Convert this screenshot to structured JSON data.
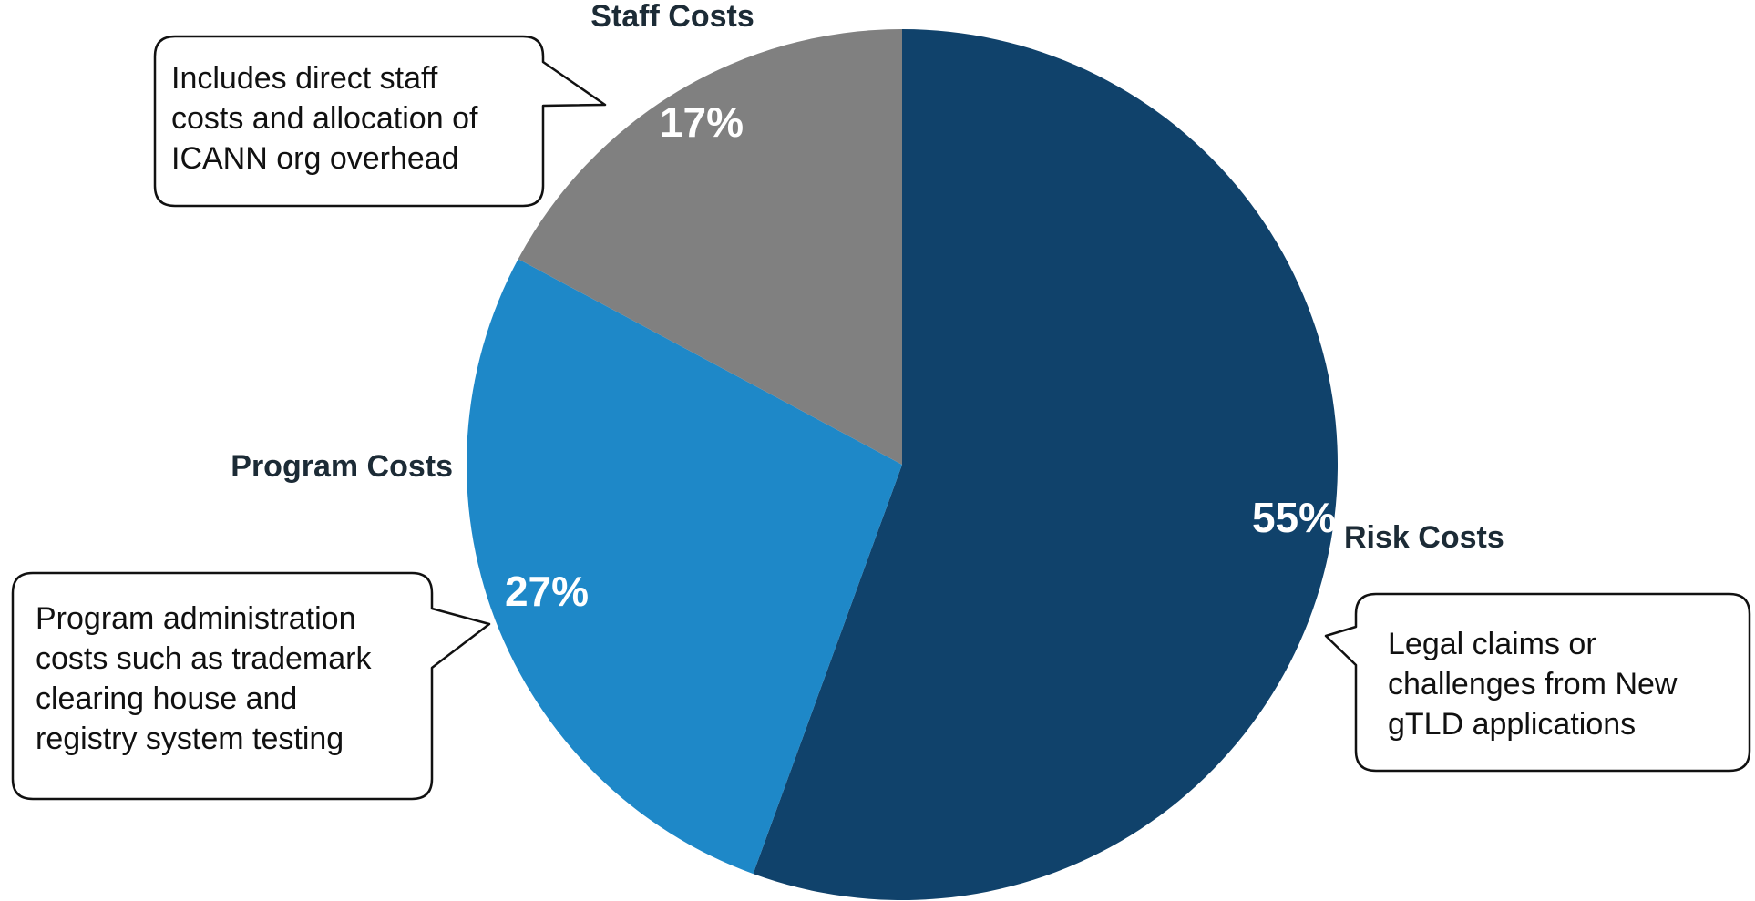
{
  "chart_data": {
    "type": "pie",
    "slices": [
      {
        "label": "Risk Costs",
        "value": 55,
        "value_label": "55%",
        "color": "#10426b",
        "note": [
          "Legal claims or",
          "challenges from New",
          "gTLD applications"
        ]
      },
      {
        "label": "Program Costs",
        "value": 27,
        "value_label": "27%",
        "color": "#1e88c8",
        "note": [
          "Program administration",
          "costs such as trademark",
          "clearing house and",
          "registry system testing"
        ]
      },
      {
        "label": "Staff Costs",
        "value": 17,
        "value_label": "17%",
        "color": "#808080",
        "note": [
          "Includes direct staff",
          "costs and allocation of",
          "ICANN org overhead"
        ]
      }
    ],
    "start": "12 o'clock",
    "direction": "clockwise",
    "legend": "none"
  }
}
